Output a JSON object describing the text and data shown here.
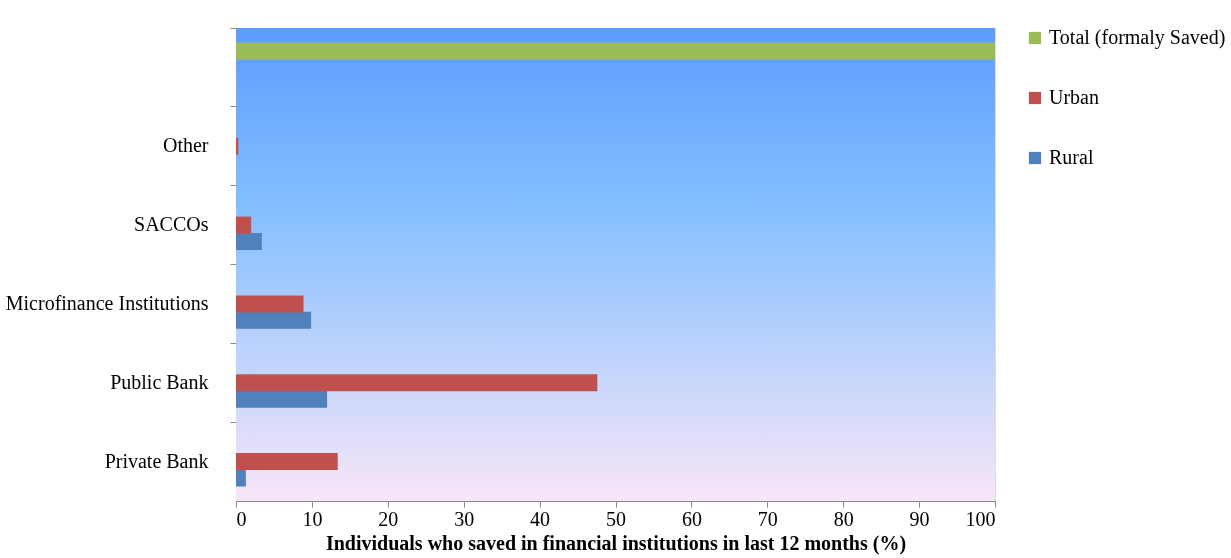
{
  "chart_data": {
    "type": "bar",
    "orientation": "horizontal",
    "xlabel": "Individuals who saved in financial institutions in last 12 months (%)",
    "categories": [
      null,
      "Other",
      "SACCOs",
      "Microfinance Institutions",
      "Public Bank",
      "Private Bank"
    ],
    "series": [
      {
        "name": "Rural",
        "color": "#4f81bd",
        "values": [
          null,
          null,
          3.4,
          9.9,
          12.0,
          1.3
        ]
      },
      {
        "name": "Urban",
        "color": "#c0504d",
        "values": [
          null,
          0.3,
          2.0,
          8.9,
          47.6,
          13.4
        ]
      },
      {
        "name": "Total (formaly Saved)",
        "color": "#9bbb59",
        "values": [
          100,
          null,
          null,
          null,
          null,
          null
        ]
      }
    ],
    "xlim": [
      0,
      100
    ],
    "xticks": [
      0,
      10,
      20,
      30,
      40,
      50,
      60,
      70,
      80,
      90,
      100
    ],
    "grid": false,
    "legend": "right"
  }
}
